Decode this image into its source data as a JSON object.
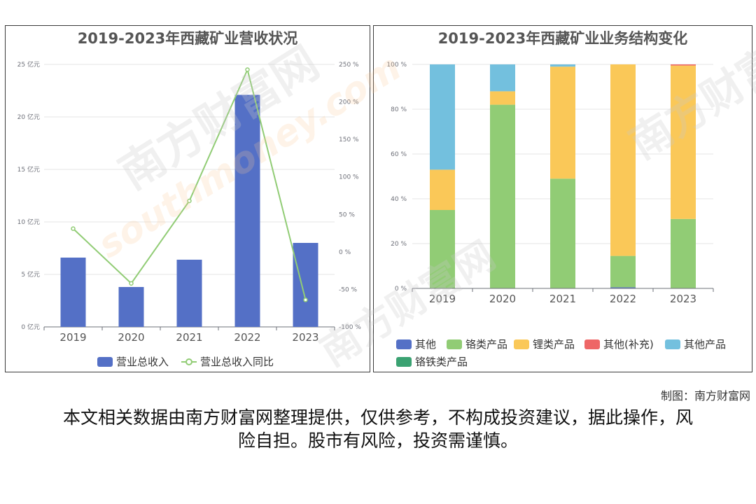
{
  "source_note": "制图：南方财富网",
  "disclaimer": "本文相关数据由南方财富网整理提供，仅供参考，不构成投资建议，据此操作，风险自担。股市有风险，投资需谨慎。",
  "watermark": {
    "cn": "南方财富网",
    "en": "southmoney.com"
  },
  "chart_data": [
    {
      "type": "bar",
      "title": "2019-2023年西藏矿业营收状况",
      "categories": [
        "2019",
        "2020",
        "2021",
        "2022",
        "2023"
      ],
      "y_left": {
        "ticks": [
          "0 亿元",
          "5 亿元",
          "10 亿元",
          "15 亿元",
          "20 亿元",
          "25 亿元"
        ],
        "lim": [
          0,
          25
        ]
      },
      "y_right": {
        "ticks": [
          "-100 %",
          "-50 %",
          "0 %",
          "50 %",
          "100 %",
          "150 %",
          "200 %",
          "250 %"
        ],
        "lim": [
          -100,
          250
        ]
      },
      "series": [
        {
          "name": "营业总收入",
          "type": "bar",
          "axis": "left",
          "color": "#5470c6",
          "values": [
            6.6,
            3.8,
            6.4,
            22.1,
            8.0
          ]
        },
        {
          "name": "营业总收入同比",
          "type": "line",
          "axis": "right",
          "color": "#91cc75",
          "values": [
            31,
            -42,
            68,
            243,
            -64
          ]
        }
      ],
      "grid": true,
      "legend": "bottom"
    },
    {
      "type": "bar",
      "stacked": true,
      "title": "2019-2023年西藏矿业业务结构变化",
      "categories": [
        "2019",
        "2020",
        "2021",
        "2022",
        "2023"
      ],
      "y": {
        "ticks": [
          "0 %",
          "20 %",
          "40 %",
          "60 %",
          "80 %",
          "100 %"
        ],
        "lim": [
          0,
          100
        ]
      },
      "series": [
        {
          "name": "其他",
          "color": "#5470c6",
          "values": [
            0,
            0,
            0,
            0.5,
            0
          ]
        },
        {
          "name": "铬类产品",
          "color": "#91cc75",
          "values": [
            35,
            82,
            49,
            14,
            31
          ]
        },
        {
          "name": "锂类产品",
          "color": "#fac858",
          "values": [
            18,
            6,
            50,
            85.5,
            68.5
          ]
        },
        {
          "name": "其他(补充)",
          "color": "#ee6666",
          "values": [
            0,
            0,
            0,
            0,
            0.5
          ]
        },
        {
          "name": "其他产品",
          "color": "#73c0de",
          "values": [
            47,
            12,
            1,
            0,
            0
          ]
        },
        {
          "name": "铬铁类产品",
          "color": "#3ba272",
          "values": [
            0,
            0,
            0,
            0,
            0
          ]
        }
      ],
      "grid": true,
      "legend": "bottom"
    }
  ]
}
